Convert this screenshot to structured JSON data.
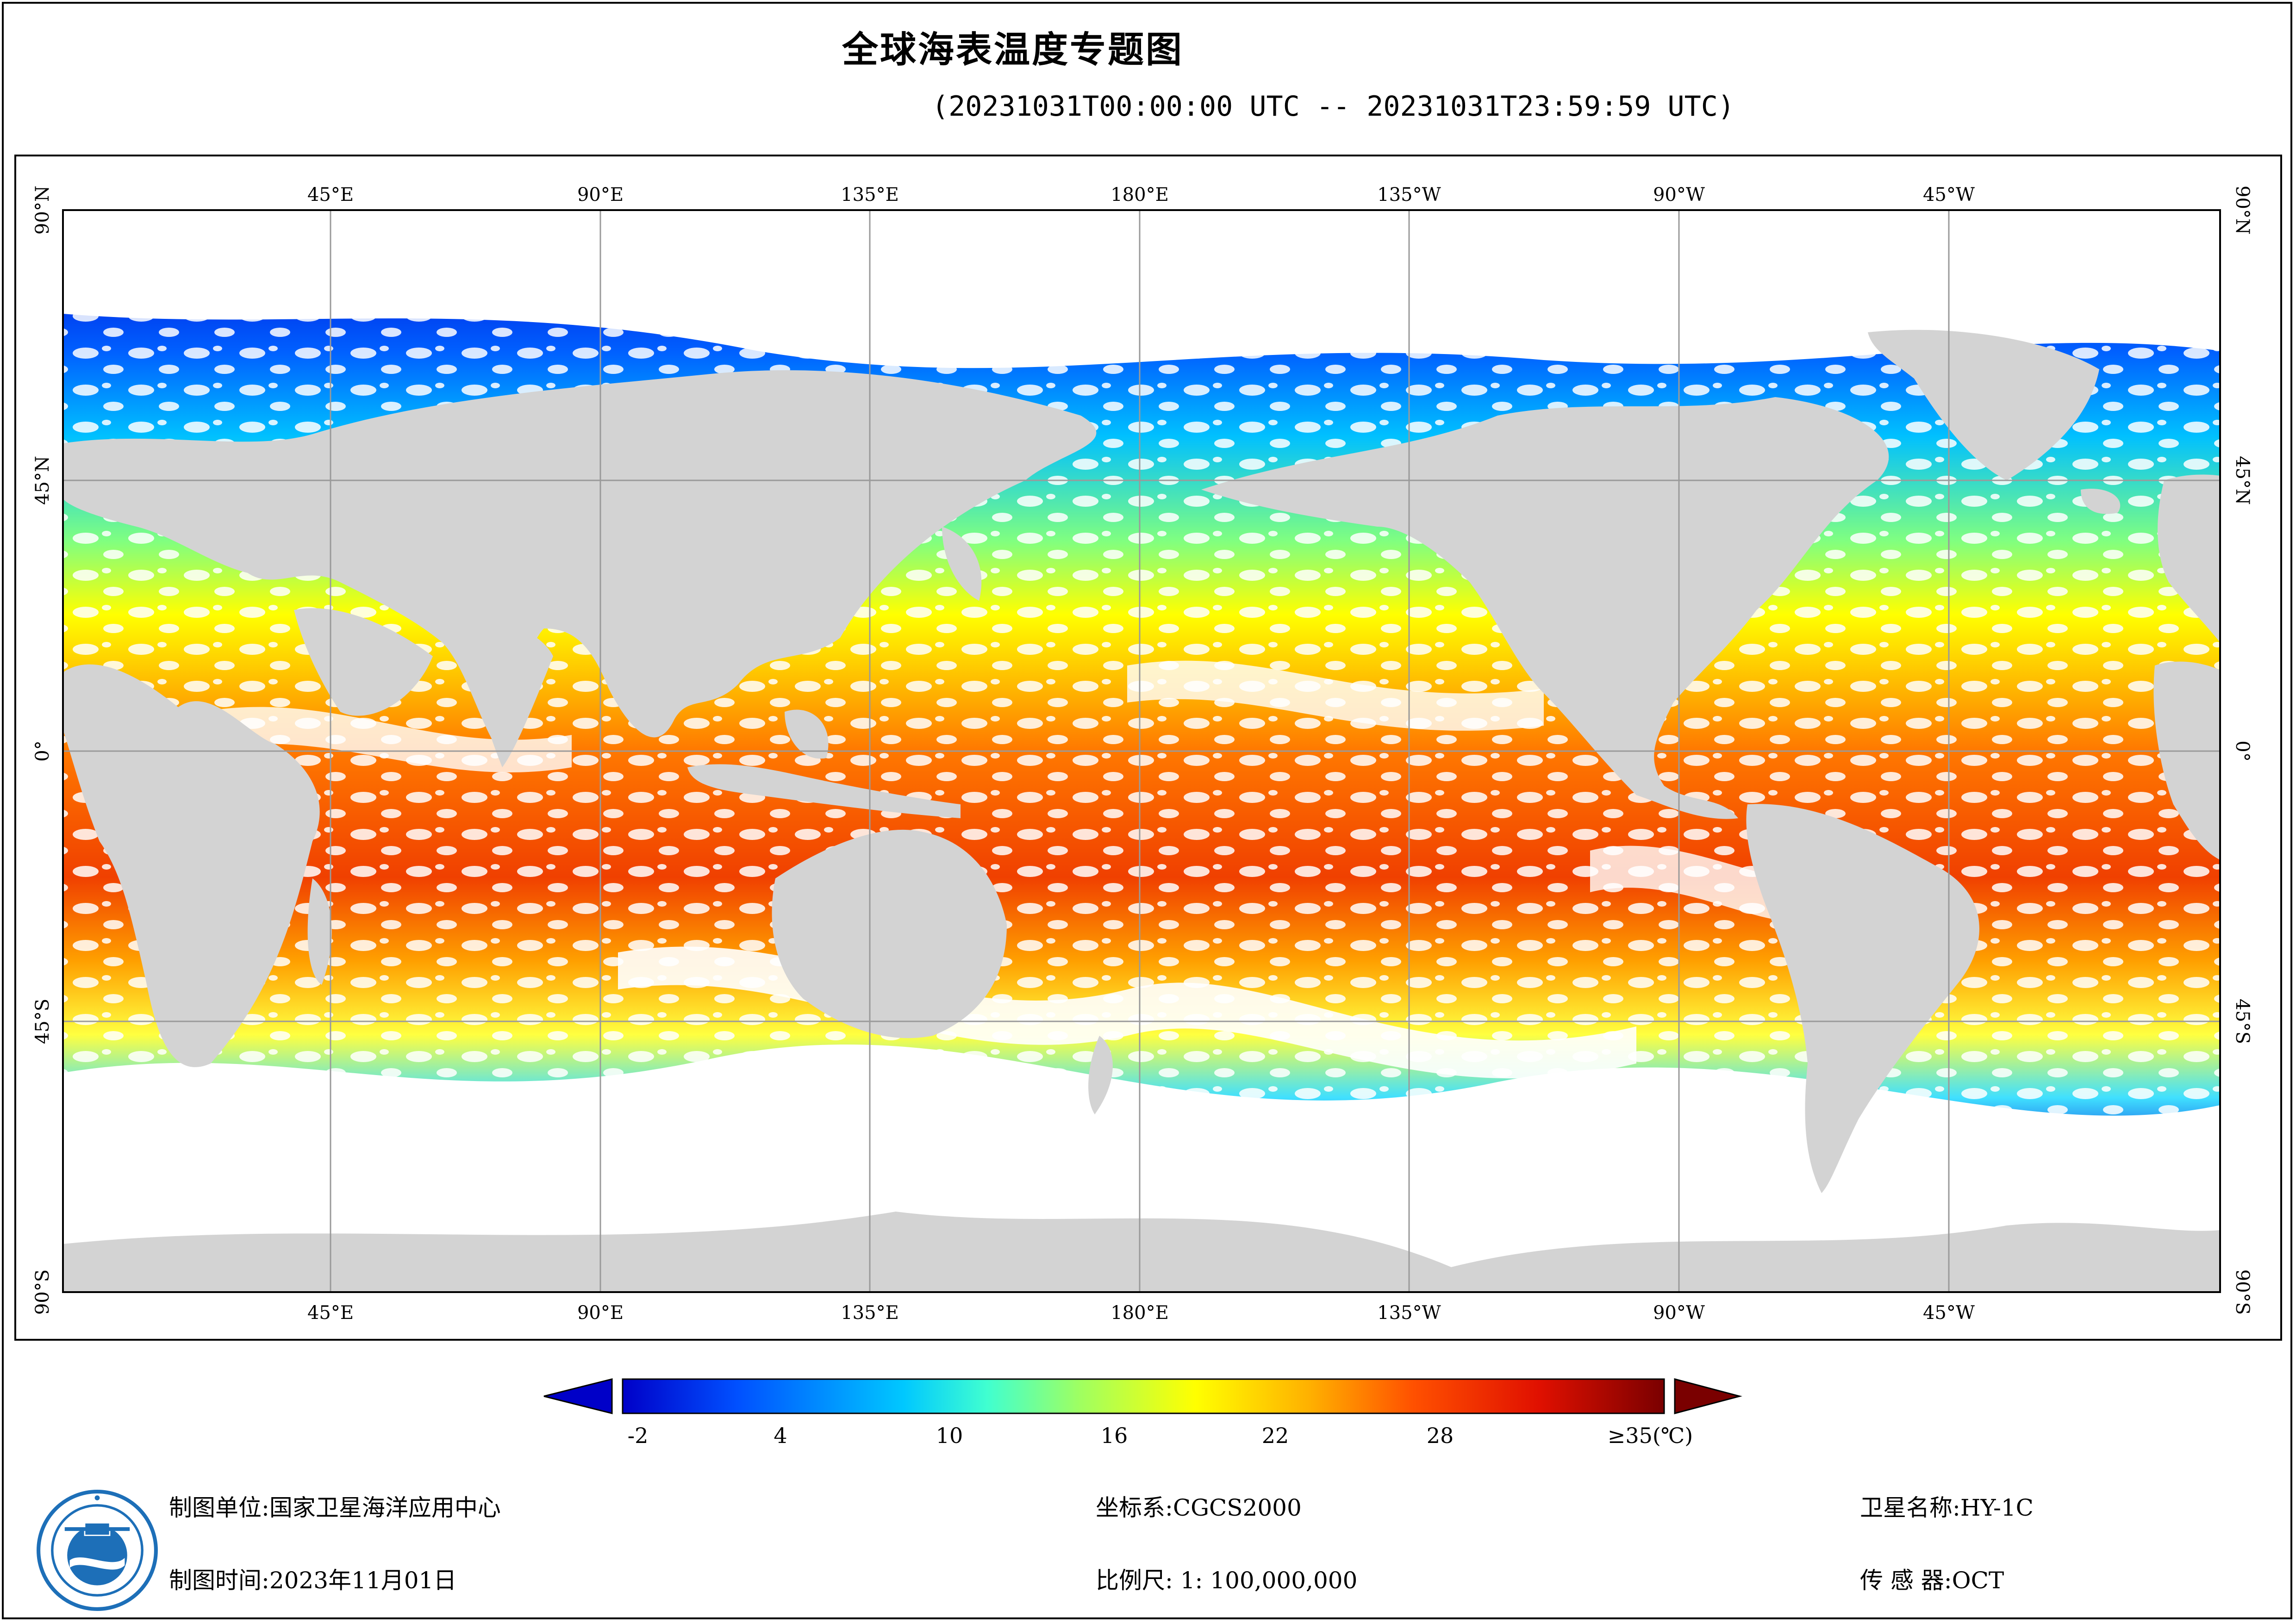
{
  "title": "全球海表温度专题图",
  "subtitle": "(20231031T00:00:00 UTC -- 20231031T23:59:59 UTC)",
  "map": {
    "top_axis_labels": [
      "45°E",
      "90°E",
      "135°E",
      "180°E",
      "135°W",
      "90°W",
      "45°W"
    ],
    "bottom_axis_labels": [
      "45°E",
      "90°E",
      "135°E",
      "180°E",
      "135°W",
      "90°W",
      "45°W"
    ],
    "lat_labels": [
      "90°N",
      "45°N",
      "0°",
      "45°S",
      "90°S"
    ],
    "colors": {
      "land": "#d3d3d3",
      "cloud_nodata": "#ffffff",
      "grid": "#9a9a9a"
    }
  },
  "legend": {
    "tick_labels": [
      "-2",
      "4",
      "10",
      "16",
      "22",
      "28",
      "≥35(℃)"
    ],
    "min_value": -2,
    "max_value": 35,
    "colors": [
      "#0000c8",
      "#0050ff",
      "#00c8ff",
      "#40ffd0",
      "#a0ff60",
      "#ffff00",
      "#ffb000",
      "#ff5000",
      "#e01000",
      "#7a0000"
    ]
  },
  "footer": {
    "org_label": "制图单位:国家卫星海洋应用中心",
    "date_label": "制图时间:2023年11月01日",
    "crs_label": "坐标系:CGCS2000",
    "scale_label": "比例尺: 1: 100,000,000",
    "satellite_label": "卫星名称:HY-1C",
    "sensor_label": "传 感 器:OCT"
  }
}
